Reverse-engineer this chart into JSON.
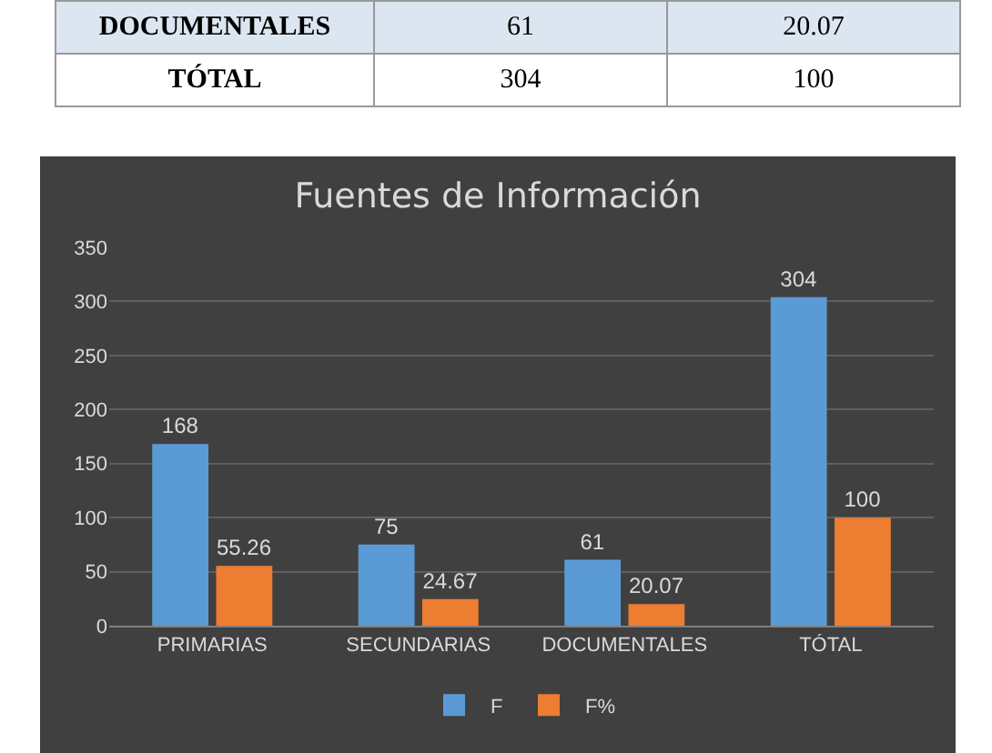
{
  "chart_data": {
    "type": "bar",
    "title": "Fuentes de Información",
    "categories": [
      "PRIMARIAS",
      "SECUNDARIAS",
      "DOCUMENTALES",
      "TÓTAL"
    ],
    "series": [
      {
        "name": "F",
        "color": "#5b9bd5",
        "values": [
          168,
          75,
          61,
          304
        ]
      },
      {
        "name": "F%",
        "color": "#ed7d31",
        "values": [
          55.26,
          24.67,
          20.07,
          100
        ]
      }
    ],
    "ylim": [
      0,
      350
    ],
    "yticks": [
      0,
      50,
      100,
      150,
      200,
      250,
      300,
      350
    ],
    "grid": "y",
    "legend": "bottom",
    "data_labels": true,
    "annotations": [
      "DOCUMENTALES",
      "61",
      "20.07",
      "TÓTAL",
      "304",
      "100"
    ]
  }
}
